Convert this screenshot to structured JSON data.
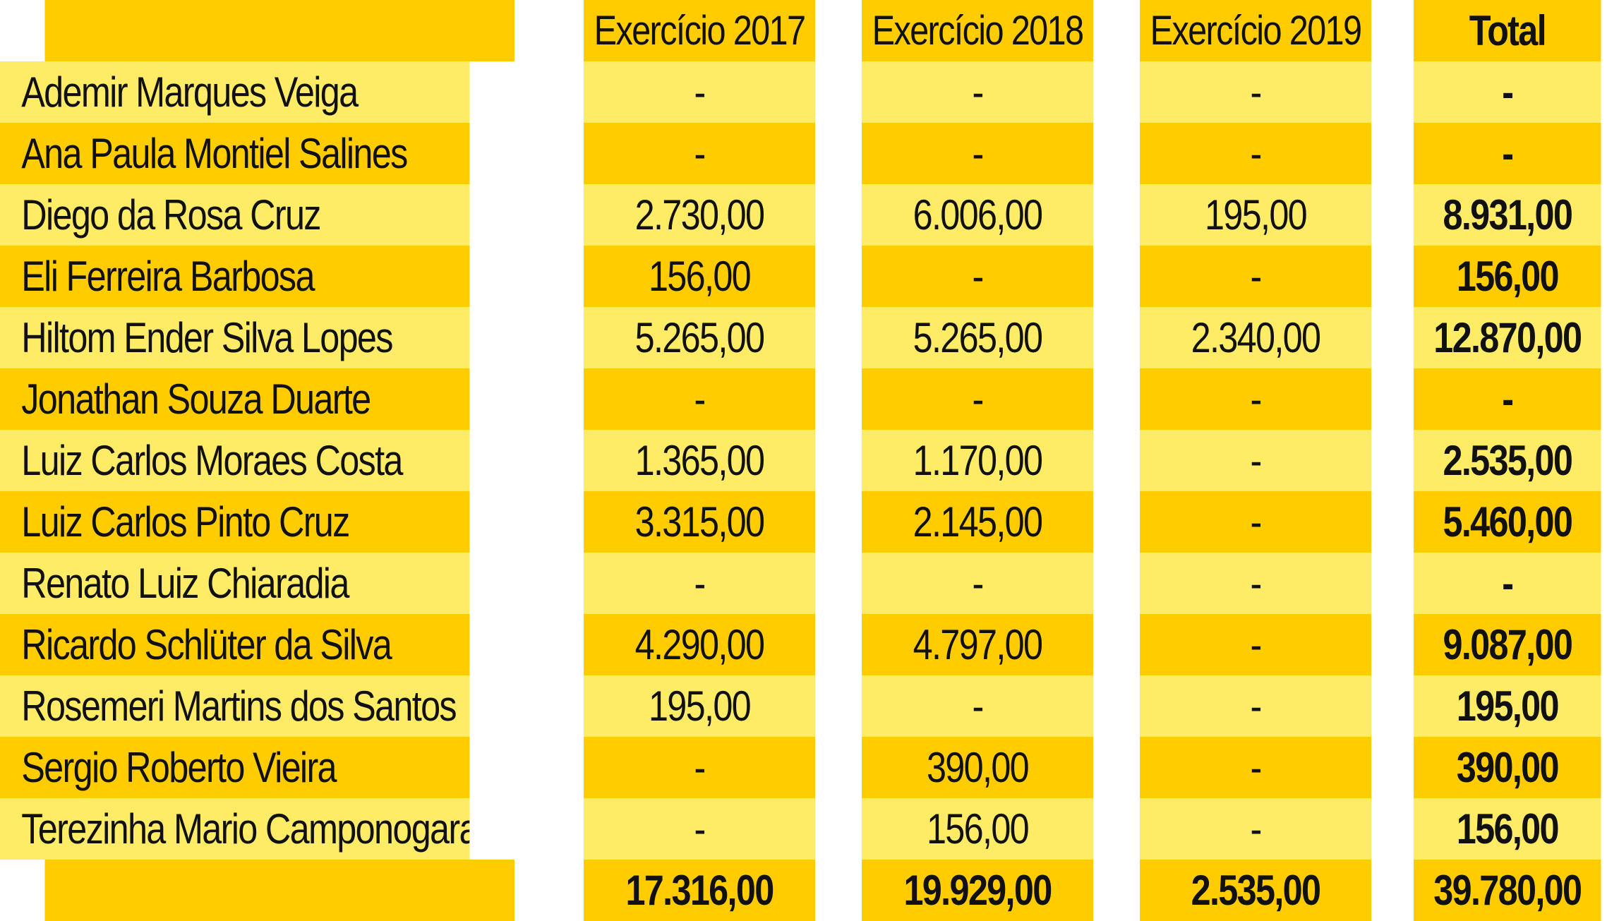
{
  "chart_data": {
    "type": "table",
    "columns": [
      "",
      "Exercício 2017",
      "Exercício 2018",
      "Exercício 2019",
      "Total"
    ],
    "rows": [
      {
        "name": "Ademir Marques Veiga",
        "y2017": "-",
        "y2018": "-",
        "y2019": "-",
        "total": "-"
      },
      {
        "name": "Ana Paula Montiel Salines",
        "y2017": "-",
        "y2018": "-",
        "y2019": "-",
        "total": "-"
      },
      {
        "name": "Diego da Rosa Cruz",
        "y2017": "2.730,00",
        "y2018": "6.006,00",
        "y2019": "195,00",
        "total": "8.931,00"
      },
      {
        "name": "Eli Ferreira Barbosa",
        "y2017": "156,00",
        "y2018": "-",
        "y2019": "-",
        "total": "156,00"
      },
      {
        "name": "Hiltom Ender Silva Lopes",
        "y2017": "5.265,00",
        "y2018": "5.265,00",
        "y2019": "2.340,00",
        "total": "12.870,00"
      },
      {
        "name": "Jonathan Souza Duarte",
        "y2017": "-",
        "y2018": "-",
        "y2019": "-",
        "total": "-"
      },
      {
        "name": "Luiz Carlos Moraes Costa",
        "y2017": "1.365,00",
        "y2018": "1.170,00",
        "y2019": "-",
        "total": "2.535,00"
      },
      {
        "name": "Luiz Carlos Pinto Cruz",
        "y2017": "3.315,00",
        "y2018": "2.145,00",
        "y2019": "-",
        "total": "5.460,00"
      },
      {
        "name": "Renato Luiz Chiaradia",
        "y2017": "-",
        "y2018": "-",
        "y2019": "-",
        "total": "-"
      },
      {
        "name": "Ricardo Schlüter da Silva",
        "y2017": "4.290,00",
        "y2018": "4.797,00",
        "y2019": "-",
        "total": "9.087,00"
      },
      {
        "name": "Rosemeri Martins dos Santos",
        "y2017": "195,00",
        "y2018": "-",
        "y2019": "-",
        "total": "195,00"
      },
      {
        "name": "Sergio Roberto Vieira",
        "y2017": "-",
        "y2018": "390,00",
        "y2019": "-",
        "total": "390,00"
      },
      {
        "name": "Terezinha Mario Camponogara",
        "y2017": "-",
        "y2018": "156,00",
        "y2019": "-",
        "total": "156,00"
      }
    ],
    "totals": {
      "label": "",
      "y2017": "17.316,00",
      "y2018": "19.929,00",
      "y2019": "2.535,00",
      "total": "39.780,00"
    }
  },
  "colors": {
    "header_bg": "#ffcc00",
    "row_light": "#ffec66",
    "row_dark": "#ffcc00",
    "divider": "#ffffff",
    "text": "#111111"
  }
}
